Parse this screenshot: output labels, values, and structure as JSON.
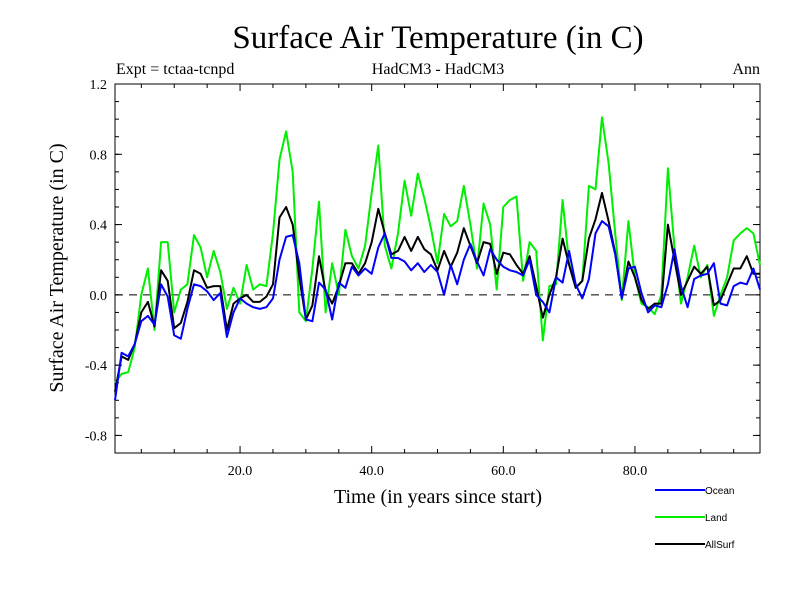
{
  "chart_data": {
    "type": "line",
    "title": "Surface Air Temperature (in C)",
    "subtitle_left": "Expt = tctaa-tcnpd",
    "subtitle_center": "HadCM3 - HadCM3",
    "subtitle_right": "Ann",
    "xlabel": "Time (in years since start)",
    "ylabel": "Surface Air Temperature (in C)",
    "xlim": [
      1,
      99
    ],
    "ylim": [
      -0.9,
      1.2
    ],
    "x_ticks": [
      20,
      40,
      60,
      80
    ],
    "x_tick_labels": [
      "20.0",
      "40.0",
      "60.0",
      "80.0"
    ],
    "y_ticks": [
      -0.8,
      -0.4,
      0.0,
      0.4,
      0.8,
      1.2
    ],
    "y_tick_labels": [
      "-0.8",
      "-0.4",
      "0.0",
      "0.4",
      "0.8",
      "1.2"
    ],
    "zero_line": true,
    "legend_position": "bottom-right",
    "x": [
      1,
      2,
      3,
      4,
      5,
      6,
      7,
      8,
      9,
      10,
      11,
      12,
      13,
      14,
      15,
      16,
      17,
      18,
      19,
      20,
      21,
      22,
      23,
      24,
      25,
      26,
      27,
      28,
      29,
      30,
      31,
      32,
      33,
      34,
      35,
      36,
      37,
      38,
      39,
      40,
      41,
      42,
      43,
      44,
      45,
      46,
      47,
      48,
      49,
      50,
      51,
      52,
      53,
      54,
      55,
      56,
      57,
      58,
      59,
      60,
      61,
      62,
      63,
      64,
      65,
      66,
      67,
      68,
      69,
      70,
      71,
      72,
      73,
      74,
      75,
      76,
      77,
      78,
      79,
      80,
      81,
      82,
      83,
      84,
      85,
      86,
      87,
      88,
      89,
      90,
      91,
      92,
      93,
      94,
      95,
      96,
      97,
      98,
      99
    ],
    "series": [
      {
        "name": "Ocean",
        "color": "#0000ff",
        "values": [
          -0.6,
          -0.33,
          -0.35,
          -0.28,
          -0.15,
          -0.12,
          -0.17,
          0.06,
          -0.01,
          -0.23,
          -0.25,
          -0.08,
          0.06,
          0.05,
          0.02,
          -0.03,
          0.01,
          -0.24,
          -0.1,
          -0.02,
          -0.05,
          -0.07,
          -0.08,
          -0.07,
          -0.02,
          0.2,
          0.33,
          0.34,
          0.18,
          -0.14,
          -0.15,
          0.07,
          0.03,
          -0.14,
          0.07,
          0.04,
          0.16,
          0.11,
          0.15,
          0.12,
          0.27,
          0.35,
          0.21,
          0.21,
          0.19,
          0.14,
          0.18,
          0.13,
          0.17,
          0.13,
          0.0,
          0.17,
          0.06,
          0.2,
          0.29,
          0.19,
          0.11,
          0.26,
          0.2,
          0.16,
          0.14,
          0.13,
          0.11,
          0.2,
          0.0,
          -0.04,
          -0.1,
          0.1,
          0.07,
          0.25,
          0.06,
          -0.02,
          0.09,
          0.35,
          0.42,
          0.39,
          0.23,
          -0.02,
          0.15,
          0.16,
          0.01,
          -0.1,
          -0.06,
          -0.07,
          0.06,
          0.26,
          0.05,
          -0.07,
          0.09,
          0.11,
          0.12,
          0.18,
          -0.05,
          -0.06,
          0.05,
          0.07,
          0.06,
          0.15,
          0.03
        ]
      },
      {
        "name": "Land",
        "color": "#00ee00",
        "values": [
          -0.5,
          -0.45,
          -0.44,
          -0.3,
          0.0,
          0.15,
          -0.2,
          0.3,
          0.3,
          -0.1,
          0.03,
          0.06,
          0.34,
          0.27,
          0.1,
          0.25,
          0.13,
          -0.08,
          0.04,
          -0.05,
          0.17,
          0.03,
          0.06,
          0.05,
          0.35,
          0.77,
          0.93,
          0.7,
          -0.1,
          -0.15,
          0.15,
          0.53,
          -0.1,
          0.18,
          0.0,
          0.37,
          0.22,
          0.15,
          0.28,
          0.58,
          0.85,
          0.28,
          0.15,
          0.35,
          0.65,
          0.45,
          0.69,
          0.55,
          0.38,
          0.18,
          0.46,
          0.39,
          0.42,
          0.62,
          0.4,
          0.15,
          0.52,
          0.4,
          0.03,
          0.5,
          0.54,
          0.56,
          0.08,
          0.3,
          0.25,
          -0.26,
          0.05,
          0.06,
          0.54,
          0.18,
          0.04,
          0.08,
          0.62,
          0.6,
          1.01,
          0.75,
          0.35,
          -0.03,
          0.42,
          0.1,
          -0.05,
          -0.07,
          -0.11,
          0.0,
          0.72,
          0.27,
          -0.05,
          0.1,
          0.28,
          0.1,
          0.17,
          -0.12,
          0.0,
          0.1,
          0.31,
          0.35,
          0.38,
          0.35,
          0.17
        ]
      },
      {
        "name": "AllSurf",
        "color": "#000000",
        "values": [
          -0.55,
          -0.35,
          -0.37,
          -0.28,
          -0.1,
          -0.04,
          -0.18,
          0.14,
          0.08,
          -0.19,
          -0.16,
          -0.04,
          0.14,
          0.12,
          0.04,
          0.05,
          0.05,
          -0.2,
          -0.05,
          -0.02,
          0.0,
          -0.04,
          -0.04,
          -0.01,
          0.06,
          0.44,
          0.5,
          0.4,
          0.1,
          -0.14,
          -0.06,
          0.22,
          0.02,
          -0.05,
          0.05,
          0.18,
          0.18,
          0.12,
          0.18,
          0.3,
          0.49,
          0.35,
          0.23,
          0.25,
          0.33,
          0.25,
          0.33,
          0.26,
          0.23,
          0.14,
          0.25,
          0.16,
          0.24,
          0.38,
          0.28,
          0.18,
          0.3,
          0.29,
          0.12,
          0.24,
          0.23,
          0.17,
          0.12,
          0.22,
          0.05,
          -0.13,
          0.0,
          0.1,
          0.32,
          0.17,
          0.04,
          0.08,
          0.32,
          0.43,
          0.58,
          0.42,
          0.24,
          -0.02,
          0.19,
          0.1,
          -0.03,
          -0.08,
          -0.05,
          -0.05,
          0.4,
          0.2,
          0.0,
          0.08,
          0.16,
          0.12,
          0.16,
          -0.06,
          -0.03,
          0.06,
          0.15,
          0.15,
          0.22,
          0.12,
          0.12
        ]
      }
    ]
  }
}
